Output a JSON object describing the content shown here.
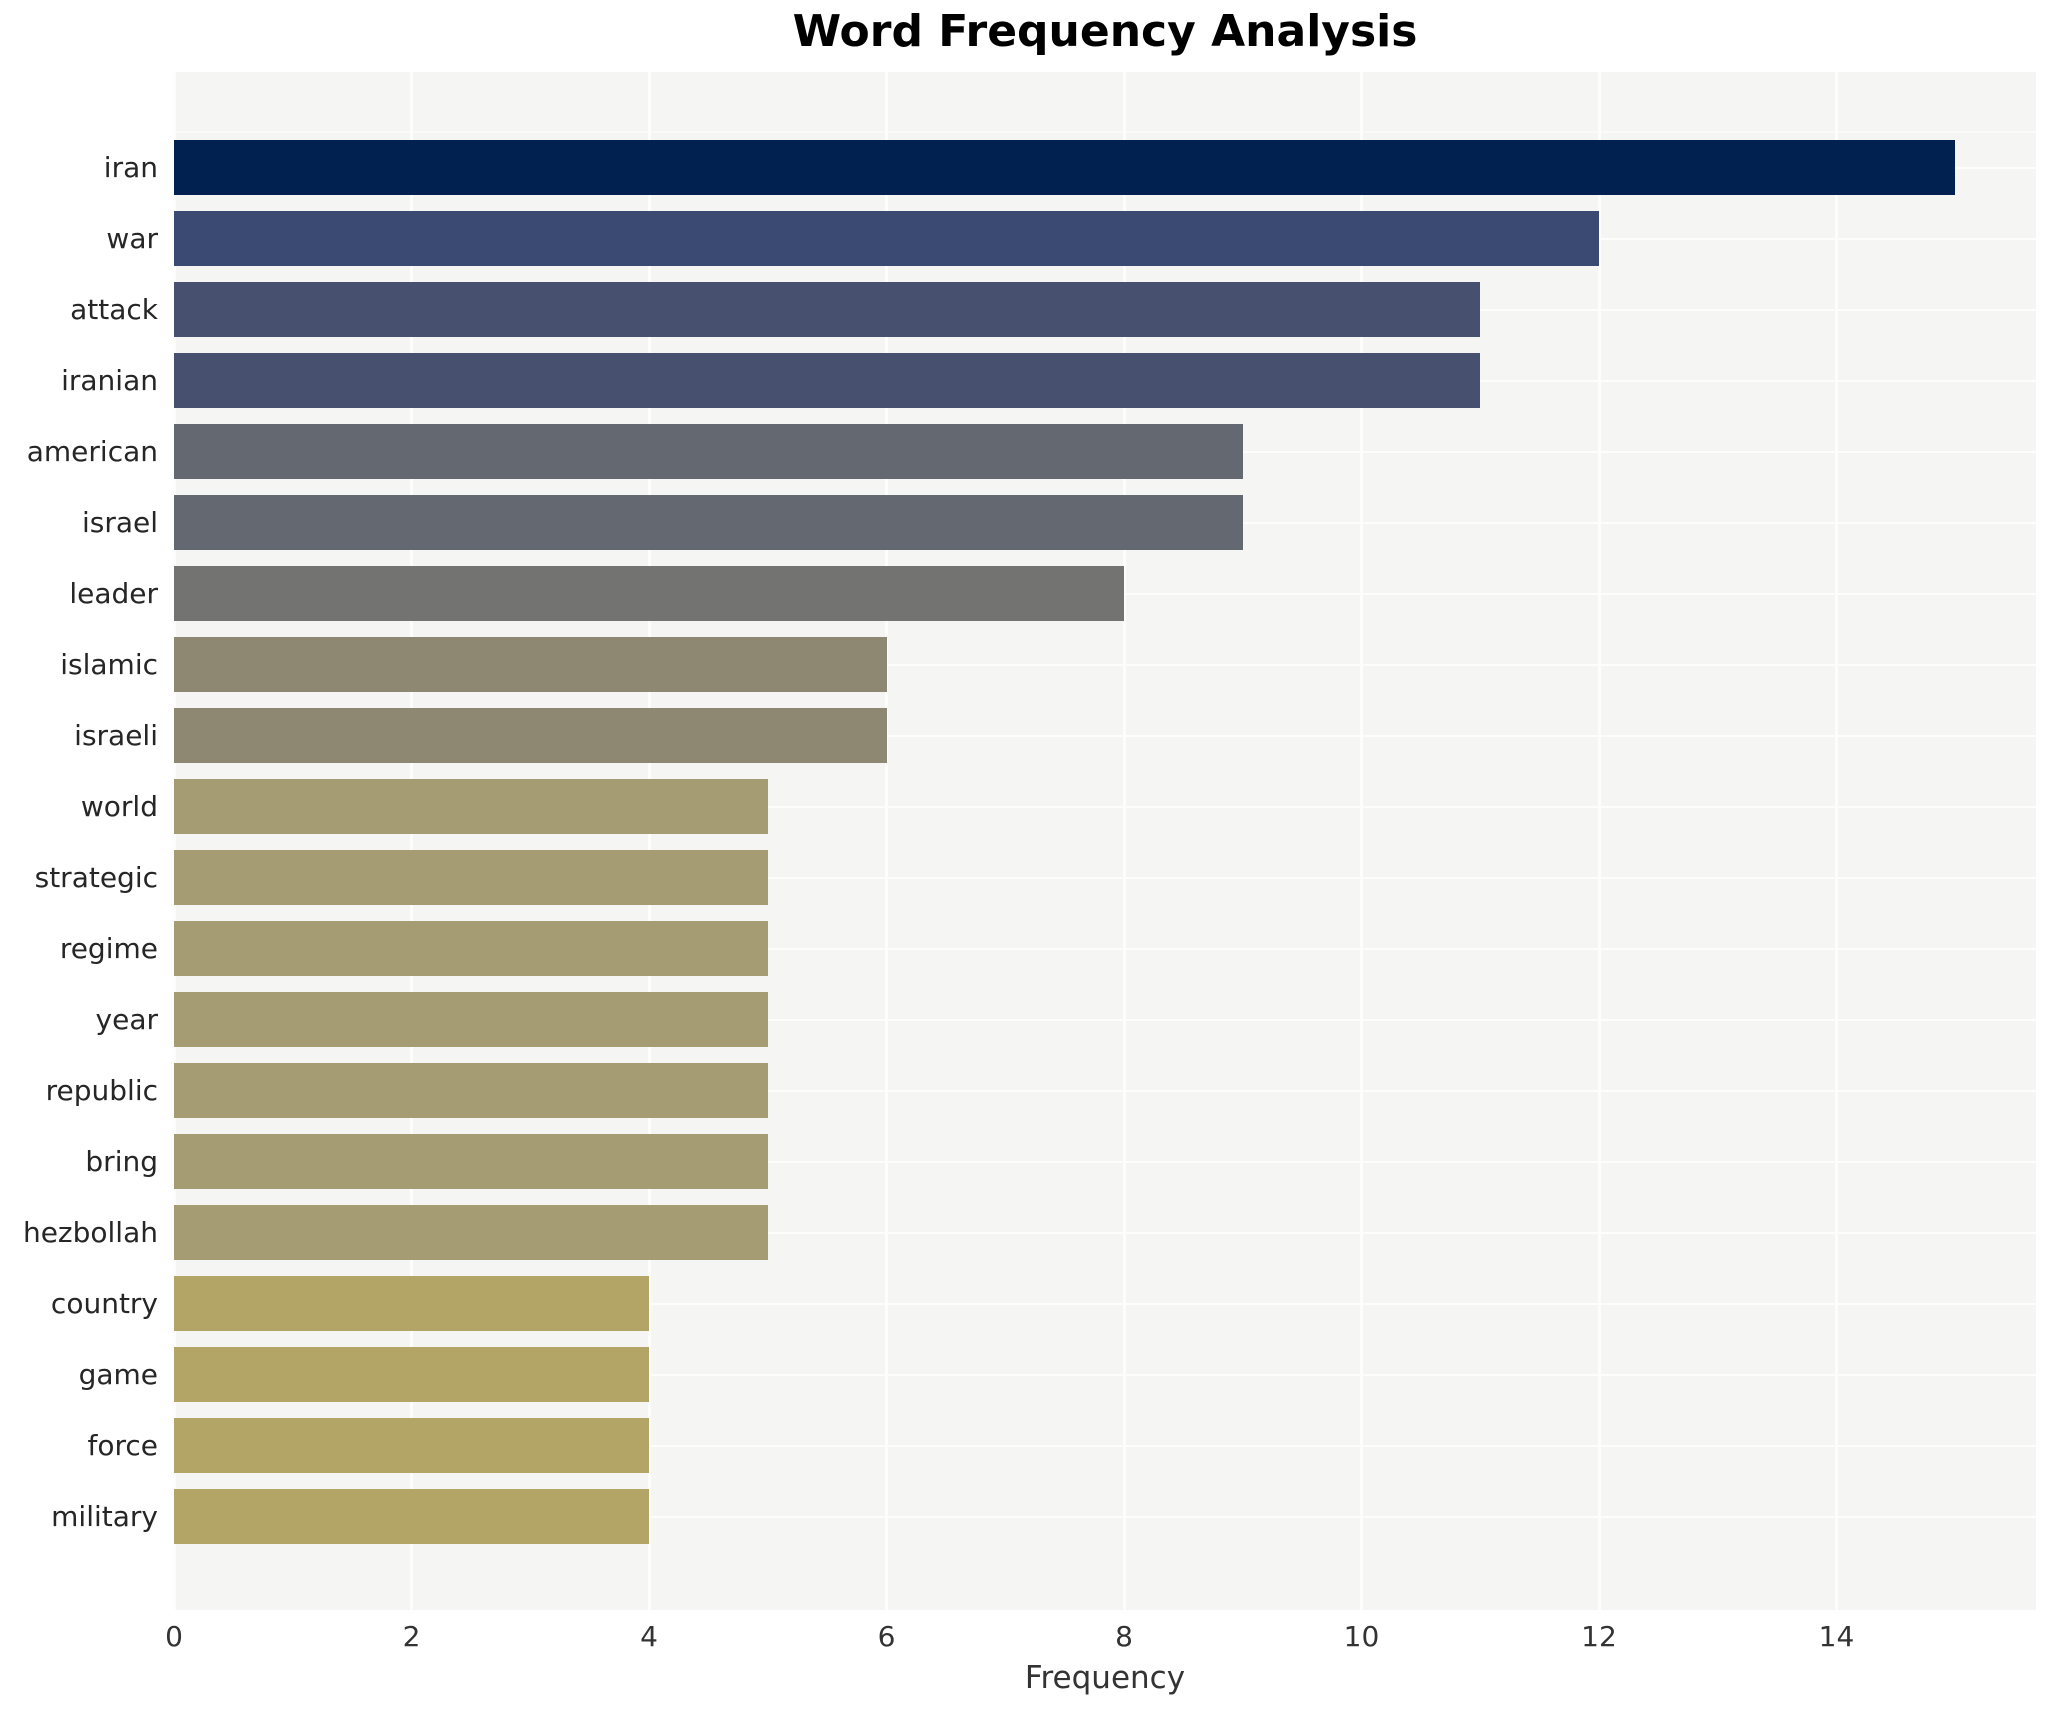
{
  "title": "Word Frequency Analysis",
  "chart_data": {
    "type": "bar",
    "orientation": "horizontal",
    "title": "Word Frequency Analysis",
    "xlabel": "Frequency",
    "ylabel": "",
    "xlim": [
      0,
      15.68
    ],
    "xticks": [
      0,
      2,
      4,
      6,
      8,
      10,
      12,
      14
    ],
    "grid": true,
    "legend": false,
    "plot_background": "#f5f5f3",
    "gridline_color": "#fdfdfc",
    "categories": [
      "iran",
      "war",
      "attack",
      "iranian",
      "american",
      "israel",
      "leader",
      "islamic",
      "israeli",
      "world",
      "strategic",
      "regime",
      "year",
      "republic",
      "bring",
      "hezbollah",
      "country",
      "game",
      "force",
      "military"
    ],
    "values": [
      15,
      12,
      11,
      11,
      9,
      9,
      8,
      6,
      6,
      5,
      5,
      5,
      5,
      5,
      5,
      5,
      4,
      4,
      4,
      4
    ],
    "bar_colors": [
      "#012250",
      "#3a4a73",
      "#485070",
      "#485070",
      "#646871",
      "#646871",
      "#737372",
      "#8e8873",
      "#8e8873",
      "#a59c73",
      "#a59c73",
      "#a59c73",
      "#a59c73",
      "#a59c73",
      "#a59c73",
      "#a59c73",
      "#b3a566",
      "#b3a566",
      "#b3a566",
      "#b3a566"
    ]
  }
}
